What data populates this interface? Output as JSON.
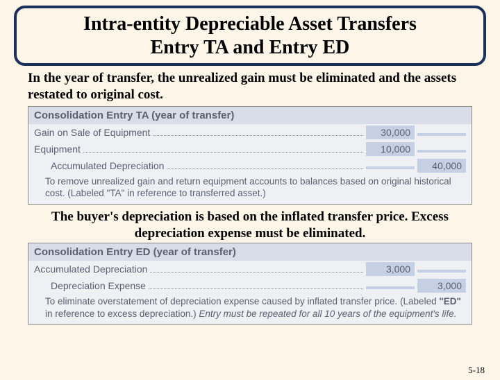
{
  "title_line1": "Intra-entity Depreciable Asset Transfers",
  "title_line2": "Entry TA and Entry ED",
  "intro": "In the year of transfer, the unrealized gain must be eliminated and the assets restated to original cost.",
  "entry_ta": {
    "header": "Consolidation Entry TA (year of transfer)",
    "rows": [
      {
        "label": "Gain on Sale of Equipment",
        "dr": "30,000",
        "cr": "",
        "indent": false
      },
      {
        "label": "Equipment",
        "dr": "10,000",
        "cr": "",
        "indent": false
      },
      {
        "label": "Accumulated Depreciation",
        "dr": "",
        "cr": "40,000",
        "indent": true
      }
    ],
    "note": "To remove unrealized gain and return equipment accounts to balances based on original historical cost. (Labeled \"TA\" in reference to transferred asset.)"
  },
  "mid": "The buyer's depreciation is based on the inflated transfer price. Excess depreciation expense must be eliminated.",
  "entry_ed": {
    "header": "Consolidation Entry ED (year of transfer)",
    "rows": [
      {
        "label": "Accumulated Depreciation",
        "dr": "3,000",
        "cr": "",
        "indent": false
      },
      {
        "label": "Depreciation Expense",
        "dr": "",
        "cr": "3,000",
        "indent": true
      }
    ],
    "note": "To eliminate overstatement of depreciation expense caused by inflated transfer price. (Labeled \"ED\" in reference to excess depreciation.) Entry must be repeated for all 10 years of the equipment's life."
  },
  "page": "5-18",
  "colors": {
    "background": "#fdf6e8",
    "title_border": "#1a2f5a",
    "table_bg": "#eef0f4",
    "table_header_bg": "#d8dde8",
    "amount_bg": "#c6d0e4",
    "table_text": "#5a6070"
  }
}
